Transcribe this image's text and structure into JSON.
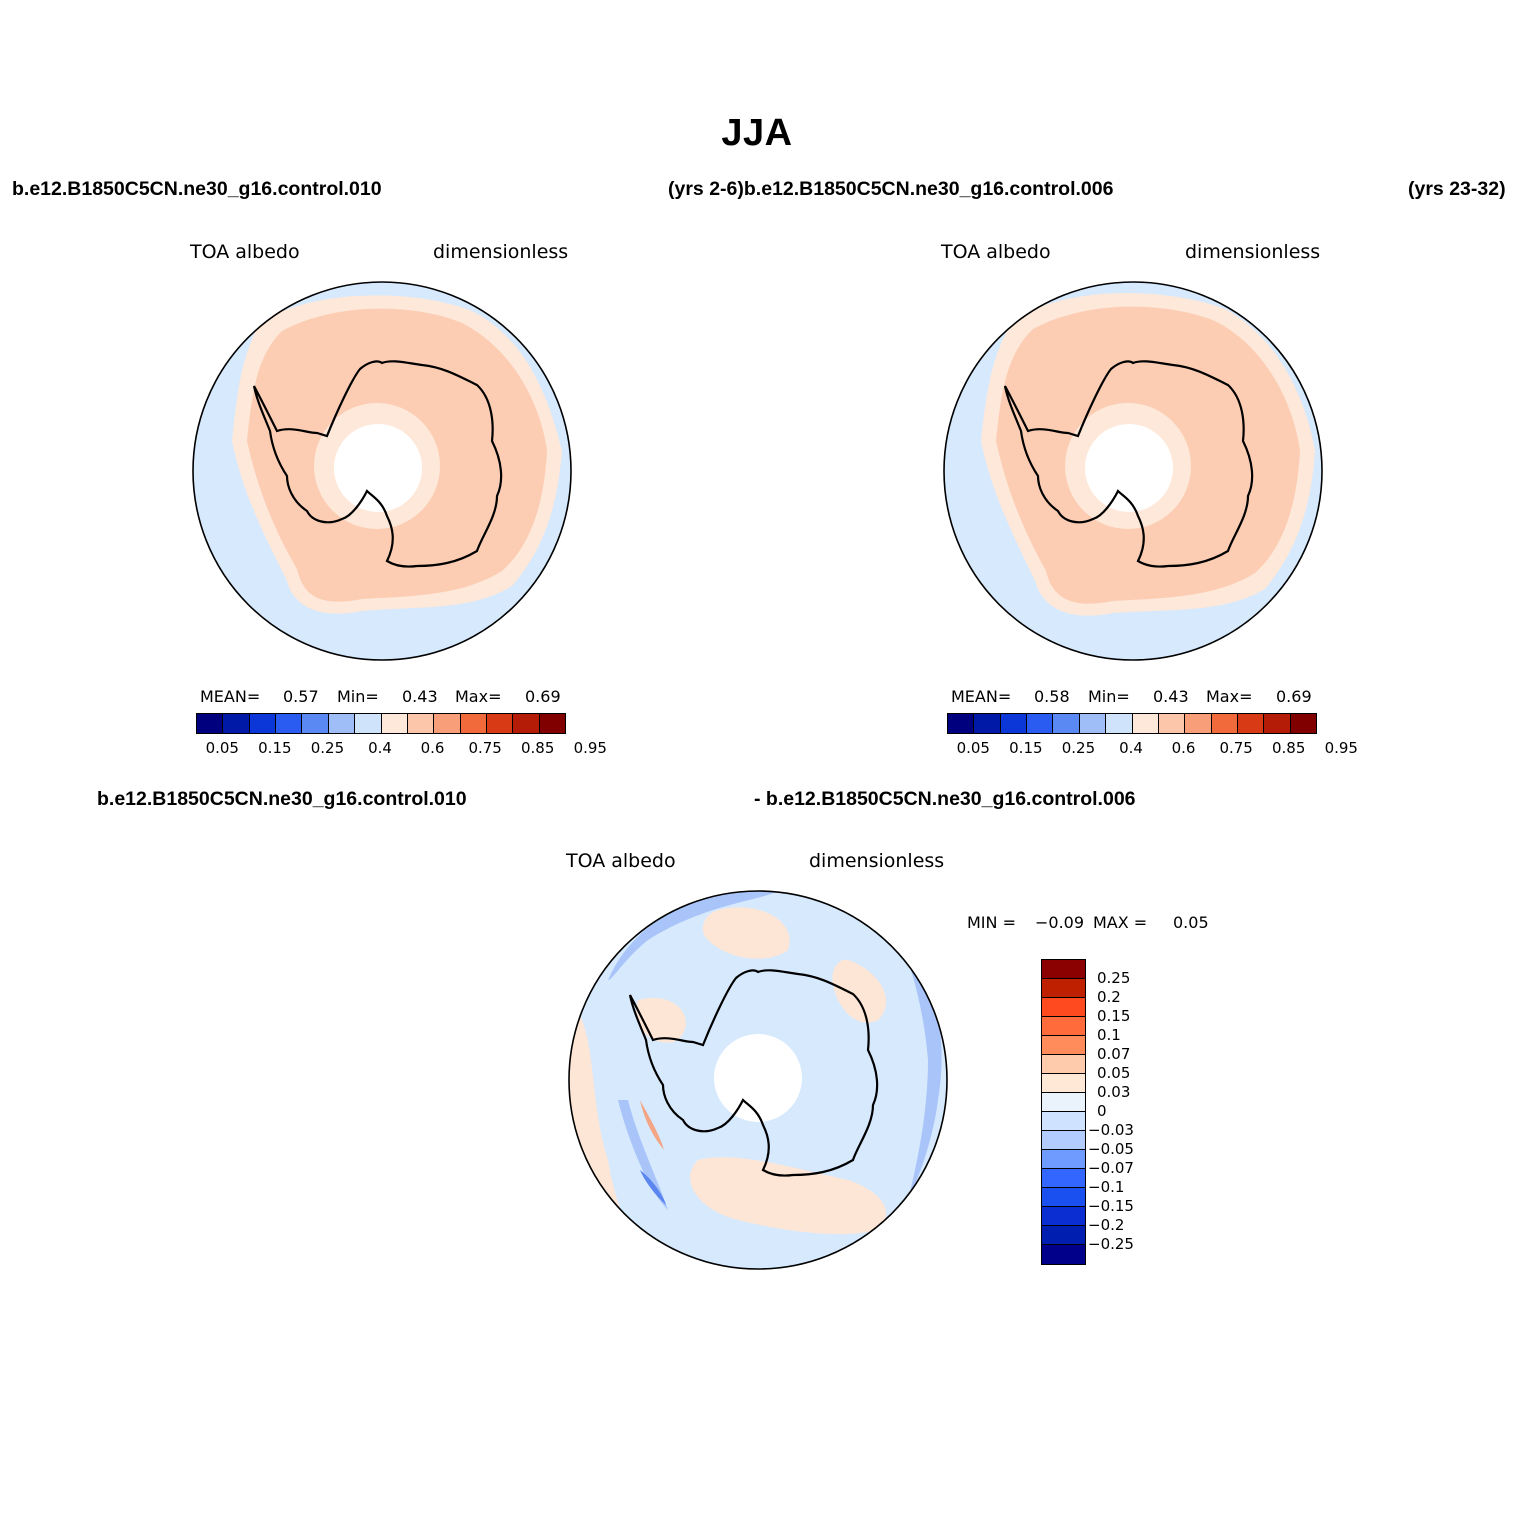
{
  "title": "JJA",
  "header": {
    "case1": "b.e12.B1850C5CN.ne30_g16.control.010",
    "years1_case2": "(yrs 2-6)b.e12.B1850C5CN.ne30_g16.control.006",
    "years2": "(yrs 23-32)",
    "diff_case1": "b.e12.B1850C5CN.ne30_g16.control.010",
    "diff_case2": "- b.e12.B1850C5CN.ne30_g16.control.006"
  },
  "panels": [
    {
      "variable": "TOA albedo",
      "units": "dimensionless",
      "mean_label": "MEAN=",
      "mean": "0.57",
      "min_label": "Min=",
      "min": "0.43",
      "max_label": "Max=",
      "max": "0.69"
    },
    {
      "variable": "TOA albedo",
      "units": "dimensionless",
      "mean_label": "MEAN=",
      "mean": "0.58",
      "min_label": "Min=",
      "min": "0.43",
      "max_label": "Max=",
      "max": "0.69"
    }
  ],
  "diff_panel": {
    "variable": "TOA albedo",
    "units": "dimensionless",
    "min_label": "MIN =",
    "min": "−0.09",
    "max_label": "MAX =",
    "max": "0.05"
  },
  "colorbar": {
    "colors": [
      "#00007f",
      "#0019a6",
      "#0b37d8",
      "#2a5cf2",
      "#5a89f4",
      "#9fbdf7",
      "#cfe3fb",
      "#fde8da",
      "#fcc6aa",
      "#f89f7a",
      "#f06a3c",
      "#d93a16",
      "#b41c08",
      "#800000"
    ],
    "ticks": [
      "0.05",
      "0.15",
      "0.25",
      "0.4",
      "0.6",
      "0.75",
      "0.85",
      "0.95"
    ]
  },
  "diff_colorbar": {
    "colors": [
      "#8b0000",
      "#bf2100",
      "#ff4a1f",
      "#ff6b3b",
      "#ff8c5a",
      "#ffcbad",
      "#ffe8d6",
      "#eaf2fb",
      "#cfe2ff",
      "#b3ccff",
      "#6f9bff",
      "#3366ff",
      "#1a4ff0",
      "#0a2ed1",
      "#001eb0",
      "#00008b"
    ],
    "ticks": [
      "0.25",
      "0.2",
      "0.15",
      "0.1",
      "0.07",
      "0.05",
      "0.03",
      "0",
      "−0.03",
      "−0.05",
      "−0.07",
      "−0.1",
      "−0.15",
      "−0.2",
      "−0.25"
    ]
  },
  "map_colors": {
    "ocean": "#d6e9fd",
    "ice_outer": "#fde8da",
    "ice_inner": "#fccdb3",
    "pole": "#ffffff",
    "diff_pos": "#fee6d6",
    "diff_neg1": "#a9c4f9",
    "diff_neg2": "#5b86ef",
    "diff_pos2": "#f4a585"
  }
}
